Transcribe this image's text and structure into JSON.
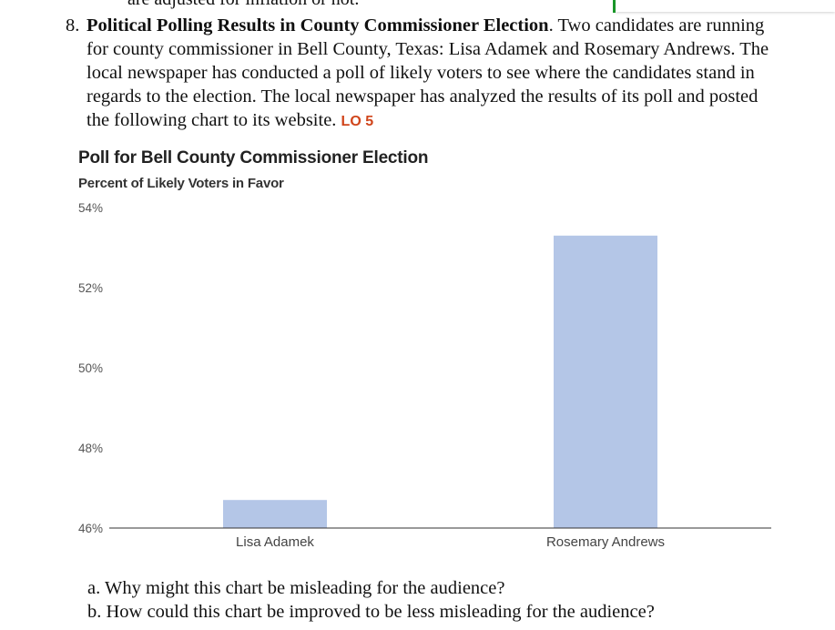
{
  "previous_text": "are adjusted for inflation or not.",
  "problem": {
    "number": "8.",
    "title": "Political Polling Results in County Commissioner Election",
    "body": "Two candidates are running for county commissioner in Bell County, Texas: Lisa Adamek and Rosemary Andrews. The local newspaper has conducted a poll of likely voters to see where the candidates stand in regards to the election. The local newspaper has analyzed the results of its poll and posted the following chart to its website.",
    "lo": "LO 5"
  },
  "chart_data": {
    "type": "bar",
    "title": "Poll for Bell County Commissioner Election",
    "subtitle": "Percent of Likely Voters in Favor",
    "categories": [
      "Lisa Adamek",
      "Rosemary Andrews"
    ],
    "values": [
      46.7,
      53.3
    ],
    "ylim": [
      46,
      54
    ],
    "yticks": [
      "54%",
      "52%",
      "50%",
      "48%",
      "46%"
    ],
    "ytick_values": [
      54,
      52,
      50,
      48,
      46
    ],
    "grid": false,
    "legend": "none",
    "bar_color": "#b4c6e7",
    "axis_color": "#333333"
  },
  "questions": [
    {
      "letter": "a.",
      "text": "Why might this chart be misleading for the audience?"
    },
    {
      "letter": "b.",
      "text": "How could this chart be improved to be less misleading for the audience?"
    }
  ]
}
